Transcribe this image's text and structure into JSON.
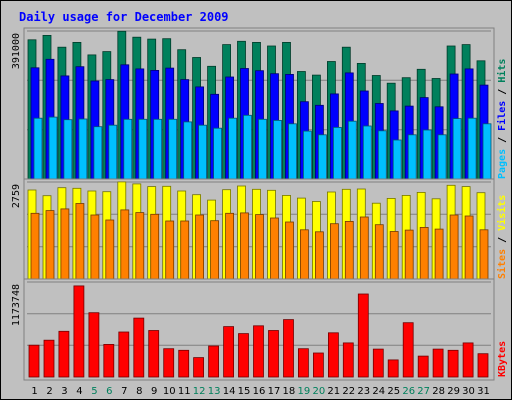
{
  "chart_data": {
    "type": "bar",
    "title": "Daily usage for December 2009",
    "categories": [
      "1",
      "2",
      "3",
      "4",
      "5",
      "6",
      "7",
      "8",
      "9",
      "10",
      "11",
      "12",
      "13",
      "14",
      "15",
      "16",
      "17",
      "18",
      "19",
      "20",
      "21",
      "22",
      "23",
      "24",
      "25",
      "26",
      "27",
      "28",
      "29",
      "30",
      "31"
    ],
    "weekend_days": [
      "5",
      "6",
      "12",
      "13",
      "19",
      "20",
      "26",
      "27"
    ],
    "panels": [
      {
        "id": "hits-panel",
        "scale_label": "391000",
        "ymax": 391000,
        "series": [
          {
            "name": "Hits",
            "color": "#00805c",
            "values": [
              378000,
              390000,
              358000,
              371000,
              337000,
              346000,
              401000,
              385000,
              380000,
              381000,
              351000,
              330000,
              306000,
              365000,
              374000,
              371000,
              361000,
              371000,
              292000,
              282000,
              319000,
              358000,
              314000,
              281000,
              260000,
              275000,
              298000,
              273000,
              361000,
              365000,
              321000
            ]
          },
          {
            "name": "Files",
            "color": "#0000ff",
            "values": [
              302000,
              325000,
              280000,
              305000,
              266000,
              270000,
              310000,
              299000,
              295000,
              301000,
              270000,
              250000,
              230000,
              277000,
              300000,
              294000,
              286000,
              284000,
              210000,
              200000,
              231000,
              288000,
              239000,
              205000,
              185000,
              198000,
              221000,
              196000,
              285000,
              299000,
              255000
            ]
          },
          {
            "name": "Pages",
            "color": "#00c0ff",
            "values": [
              165000,
              168000,
              161000,
              163000,
              142000,
              146000,
              162000,
              162000,
              162000,
              162000,
              155000,
              146000,
              138000,
              165000,
              173000,
              162000,
              159000,
              150000,
              130000,
              120000,
              140000,
              157000,
              144000,
              131000,
              106000,
              120000,
              133000,
              120000,
              164000,
              165000,
              150000
            ]
          }
        ],
        "legend": [
          "Pages",
          "Files",
          "Hits"
        ]
      },
      {
        "id": "visits-panel",
        "scale_label": "2759",
        "ymax": 2759,
        "series": [
          {
            "name": "Visits",
            "color": "#ffff00",
            "values": [
              2640,
              2470,
              2710,
              2690,
              2610,
              2590,
              2880,
              2820,
              2740,
              2750,
              2610,
              2500,
              2340,
              2650,
              2760,
              2660,
              2630,
              2480,
              2400,
              2300,
              2580,
              2660,
              2670,
              2250,
              2390,
              2480,
              2570,
              2380,
              2780,
              2740,
              2560
            ]
          },
          {
            "name": "Sites",
            "color": "#ff8000",
            "values": [
              1950,
              2030,
              2080,
              2240,
              1900,
              1750,
              2050,
              1970,
              1920,
              1720,
              1720,
              1900,
              1730,
              1950,
              1960,
              1910,
              1810,
              1690,
              1460,
              1400,
              1640,
              1710,
              1840,
              1610,
              1410,
              1450,
              1530,
              1480,
              1900,
              1870,
              1460
            ]
          }
        ],
        "legend": [
          "Sites",
          "Visits"
        ]
      },
      {
        "id": "kbytes-panel",
        "scale_label": "1173748",
        "ymax": 1173748,
        "series": [
          {
            "name": "KBytes",
            "color": "#ff0000",
            "values": [
              410000,
              475000,
              590000,
              1175000,
              830000,
              420000,
              580000,
              760000,
              600000,
              365000,
              345000,
              250000,
              400000,
              650000,
              560000,
              660000,
              600000,
              740000,
              365000,
              310000,
              570000,
              440000,
              1070000,
              360000,
              220000,
              700000,
              270000,
              360000,
              345000,
              440000,
              300000
            ]
          }
        ],
        "legend": [
          "KBytes"
        ]
      }
    ],
    "legend_separator": " / "
  }
}
